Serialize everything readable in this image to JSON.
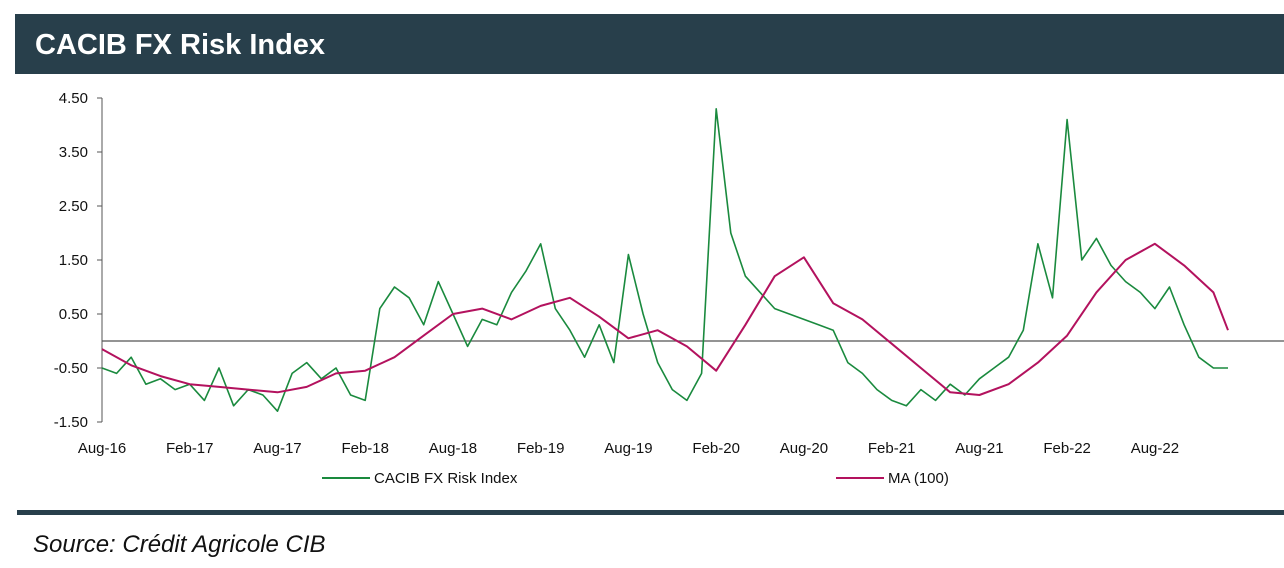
{
  "header": {
    "title": "CACIB FX Risk Index"
  },
  "source": "Source: Crédit Agricole CIB",
  "colors": {
    "header_bg": "#283f4b",
    "index_line": "#1a8a3e",
    "ma_line": "#b3125e",
    "zero_line": "#555555"
  },
  "chart_data": {
    "type": "line",
    "title": "CACIB FX Risk Index",
    "x_ticks": [
      "Aug-16",
      "Feb-17",
      "Aug-17",
      "Feb-18",
      "Aug-18",
      "Feb-19",
      "Aug-19",
      "Feb-20",
      "Aug-20",
      "Feb-21",
      "Aug-21",
      "Feb-22",
      "Aug-22"
    ],
    "x_range": [
      "2016-08",
      "2023-01"
    ],
    "y_ticks": [
      "4.50",
      "3.50",
      "2.50",
      "1.50",
      "0.50",
      "-0.50",
      "-1.50"
    ],
    "ylim": [
      -1.5,
      4.5
    ],
    "reference_line": 0,
    "legend_position": "bottom",
    "series": [
      {
        "name": "CACIB FX Risk Index",
        "color": "#1a8a3e",
        "x": [
          "2016-08",
          "2016-09",
          "2016-10",
          "2016-11",
          "2016-12",
          "2017-01",
          "2017-02",
          "2017-03",
          "2017-04",
          "2017-05",
          "2017-06",
          "2017-07",
          "2017-08",
          "2017-09",
          "2017-10",
          "2017-11",
          "2017-12",
          "2018-01",
          "2018-02",
          "2018-03",
          "2018-04",
          "2018-05",
          "2018-06",
          "2018-07",
          "2018-08",
          "2018-09",
          "2018-10",
          "2018-11",
          "2018-12",
          "2019-01",
          "2019-02",
          "2019-03",
          "2019-04",
          "2019-05",
          "2019-06",
          "2019-07",
          "2019-08",
          "2019-09",
          "2019-10",
          "2019-11",
          "2019-12",
          "2020-01",
          "2020-02",
          "2020-03",
          "2020-04",
          "2020-05",
          "2020-06",
          "2020-07",
          "2020-08",
          "2020-09",
          "2020-10",
          "2020-11",
          "2020-12",
          "2021-01",
          "2021-02",
          "2021-03",
          "2021-04",
          "2021-05",
          "2021-06",
          "2021-07",
          "2021-08",
          "2021-09",
          "2021-10",
          "2021-11",
          "2021-12",
          "2022-01",
          "2022-02",
          "2022-03",
          "2022-04",
          "2022-05",
          "2022-06",
          "2022-07",
          "2022-08",
          "2022-09",
          "2022-10",
          "2022-11",
          "2022-12",
          "2023-01"
        ],
        "values": [
          -0.5,
          -0.6,
          -0.3,
          -0.8,
          -0.7,
          -0.9,
          -0.8,
          -1.1,
          -0.5,
          -1.2,
          -0.9,
          -1.0,
          -1.3,
          -0.6,
          -0.4,
          -0.7,
          -0.5,
          -1.0,
          -1.1,
          0.6,
          1.0,
          0.8,
          0.3,
          1.1,
          0.5,
          -0.1,
          0.4,
          0.3,
          0.9,
          1.3,
          1.8,
          0.6,
          0.2,
          -0.3,
          0.3,
          -0.4,
          1.6,
          0.5,
          -0.4,
          -0.9,
          -1.1,
          -0.6,
          4.3,
          2.0,
          1.2,
          0.9,
          0.6,
          0.5,
          0.4,
          0.3,
          0.2,
          -0.4,
          -0.6,
          -0.9,
          -1.1,
          -1.2,
          -0.9,
          -1.1,
          -0.8,
          -1.0,
          -0.7,
          -0.5,
          -0.3,
          0.2,
          1.8,
          0.8,
          4.1,
          1.5,
          1.9,
          1.4,
          1.1,
          0.9,
          0.6,
          1.0,
          0.3,
          -0.3,
          -0.5,
          -0.5
        ]
      },
      {
        "name": "MA (100)",
        "color": "#b3125e",
        "x": [
          "2016-08",
          "2016-10",
          "2016-12",
          "2017-02",
          "2017-04",
          "2017-06",
          "2017-08",
          "2017-10",
          "2017-12",
          "2018-02",
          "2018-04",
          "2018-06",
          "2018-08",
          "2018-10",
          "2018-12",
          "2019-02",
          "2019-04",
          "2019-06",
          "2019-08",
          "2019-10",
          "2019-12",
          "2020-02",
          "2020-04",
          "2020-06",
          "2020-08",
          "2020-10",
          "2020-12",
          "2021-02",
          "2021-04",
          "2021-06",
          "2021-08",
          "2021-10",
          "2021-12",
          "2022-02",
          "2022-04",
          "2022-06",
          "2022-08",
          "2022-10",
          "2022-12",
          "2023-01"
        ],
        "values": [
          -0.15,
          -0.45,
          -0.65,
          -0.8,
          -0.85,
          -0.9,
          -0.95,
          -0.85,
          -0.6,
          -0.55,
          -0.3,
          0.1,
          0.5,
          0.6,
          0.4,
          0.65,
          0.8,
          0.45,
          0.05,
          0.2,
          -0.1,
          -0.55,
          0.3,
          1.2,
          1.55,
          0.7,
          0.4,
          -0.05,
          -0.5,
          -0.95,
          -1.0,
          -0.8,
          -0.4,
          0.1,
          0.9,
          1.5,
          1.8,
          1.4,
          0.9,
          0.2
        ]
      }
    ]
  }
}
